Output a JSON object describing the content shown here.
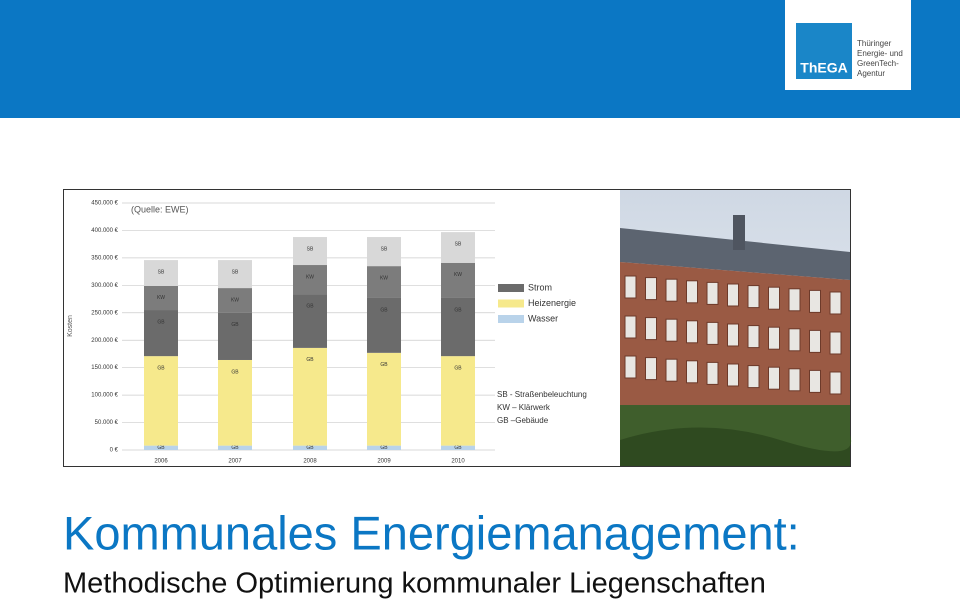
{
  "header": {
    "logo": {
      "mark": "ThEGA",
      "lines": [
        "Thüringer",
        "Energie- und",
        "GreenTech-",
        "Agentur"
      ]
    }
  },
  "chart_data": {
    "type": "stacked-bar",
    "annotation": "(Quelle: EWE)",
    "y_label": "Kosten",
    "categories": [
      "2006",
      "2007",
      "2008",
      "2009",
      "2010"
    ],
    "series": [
      {
        "label": "GB",
        "color": "#b9d3ea",
        "values": [
          8000,
          8000,
          8000,
          8000,
          8000
        ]
      },
      {
        "label": "GB",
        "color": "#f6e98c",
        "values": [
          163000,
          156000,
          178000,
          169000,
          163000
        ]
      },
      {
        "label": "GB",
        "color": "#6b6b6b",
        "values": [
          84000,
          86000,
          98000,
          100000,
          106000
        ]
      },
      {
        "label": "KW",
        "color": "#7c7c7c",
        "values": [
          44000,
          45000,
          53000,
          58000,
          64000
        ]
      },
      {
        "label": "SB",
        "color": "#d8d8d8",
        "values": [
          47000,
          51000,
          51000,
          53000,
          56000
        ]
      }
    ],
    "legend": [
      {
        "name": "Strom",
        "color": "#6b6b6b"
      },
      {
        "name": "Heizenergie",
        "color": "#f6e98c"
      },
      {
        "name": "Wasser",
        "color": "#b9d3ea"
      }
    ],
    "key": [
      "SB - Straßenbeleuchtung",
      "KW – Klärwerk",
      "GB –Gebäude"
    ],
    "ylim": [
      0,
      450000
    ],
    "yticks": [
      {
        "value": 0,
        "label": "0 €"
      },
      {
        "value": 50000,
        "label": "50.000 €"
      },
      {
        "value": 100000,
        "label": "100.000 €"
      },
      {
        "value": 150000,
        "label": "150.000 €"
      },
      {
        "value": 200000,
        "label": "200.000 €"
      },
      {
        "value": 250000,
        "label": "250.000 €"
      },
      {
        "value": 300000,
        "label": "300.000 €"
      },
      {
        "value": 350000,
        "label": "350.000 €"
      },
      {
        "value": 400000,
        "label": "400.000 €"
      },
      {
        "value": 450000,
        "label": "450.000 €"
      }
    ],
    "grid": true
  },
  "title": "Kommunales Energiemanagement:",
  "subtitle": "Methodische Optimierung kommunaler Liegenschaften"
}
